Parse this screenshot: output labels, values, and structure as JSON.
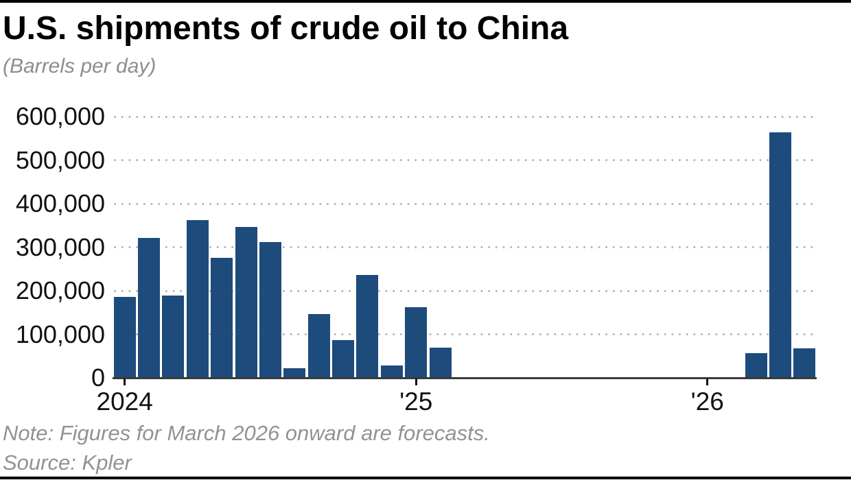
{
  "page": {
    "title": "U.S. shipments of crude oil to China",
    "subtitle": "(Barrels per day)",
    "note": "Note: Figures for March 2026 onward are forecasts.",
    "source": "Source: Kpler"
  },
  "colors": {
    "bar": "#1d4b7c",
    "axis_line": "#3b3b3b",
    "grid_dot": "#a9a9a9",
    "title_text": "#000000",
    "muted_text": "#8d8d8d",
    "rule": "#000000"
  },
  "chart_data": {
    "type": "bar",
    "title": "U.S. shipments of crude oil to China",
    "subtitle": "(Barrels per day)",
    "ylabel": "Barrels per day",
    "ylim": [
      0,
      600000
    ],
    "grid": "dotted horizontal gridlines",
    "legend": "none",
    "note": "Note: Figures for March 2026 onward are forecasts.",
    "source": "Source: Kpler",
    "x": [
      "Jan 2024",
      "Feb 2024",
      "Mar 2024",
      "Apr 2024",
      "May 2024",
      "Jun 2024",
      "Jul 2024",
      "Aug 2024",
      "Sep 2024",
      "Oct 2024",
      "Nov 2024",
      "Dec 2024",
      "Jan 2025",
      "Feb 2025",
      "Mar 2025",
      "Apr 2025",
      "May 2025",
      "Jun 2025",
      "Jul 2025",
      "Aug 2025",
      "Sep 2025",
      "Oct 2025",
      "Nov 2025",
      "Dec 2025",
      "Jan 2026",
      "Feb 2026",
      "Mar 2026",
      "Apr 2026",
      "May 2026"
    ],
    "values": [
      186000,
      321000,
      189000,
      363000,
      276000,
      346000,
      312000,
      22000,
      146000,
      86000,
      236000,
      29000,
      163000,
      69000,
      0,
      0,
      0,
      0,
      0,
      0,
      0,
      0,
      0,
      0,
      0,
      0,
      57000,
      564000,
      67000
    ],
    "forecast_from": "Mar 2026",
    "y_ticks": [
      {
        "value": 600000,
        "label": "600,000"
      },
      {
        "value": 500000,
        "label": "500,000"
      },
      {
        "value": 400000,
        "label": "400,000"
      },
      {
        "value": 300000,
        "label": "300,000"
      },
      {
        "value": 200000,
        "label": "200,000"
      },
      {
        "value": 100000,
        "label": "100,000"
      },
      {
        "value": 0,
        "label": "0"
      }
    ],
    "x_ticks": [
      {
        "index": 0,
        "label": "2024"
      },
      {
        "index": 12,
        "label": "'25"
      },
      {
        "index": 24,
        "label": "'26"
      }
    ]
  }
}
